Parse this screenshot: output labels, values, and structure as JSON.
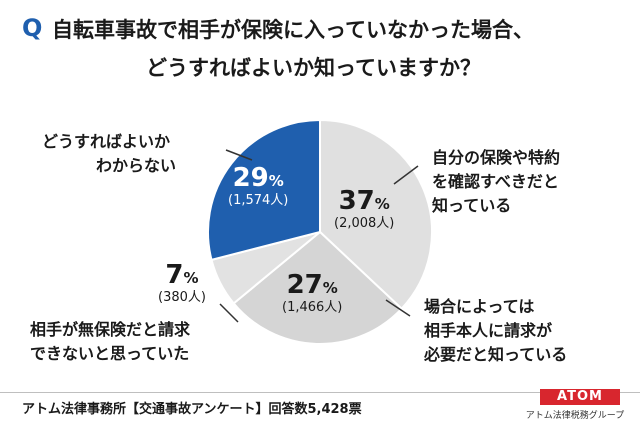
{
  "header": {
    "q_mark": "Q",
    "line1": "自転車事故で相手が保険に入っていなかった場合、",
    "line2": "どうすればよいか知っていますか？"
  },
  "chart_data": {
    "type": "pie",
    "title": "自転車事故で相手が保険に入っていなかった場合、どうすればよいか知っていますか？",
    "total_label": "回答数5,428票",
    "slices": [
      {
        "label_lines": [
          "自分の保険や特約",
          "を確認すべきだと",
          "知っている"
        ],
        "percent": 37,
        "percent_text": "37",
        "count_text": "(2,008人)",
        "count": 2008,
        "color": "#e0e0e0"
      },
      {
        "label_lines": [
          "場合によっては",
          "相手本人に請求が",
          "必要だと知っている"
        ],
        "percent": 27,
        "percent_text": "27",
        "count_text": "(1,466人)",
        "count": 1466,
        "color": "#d5d5d5"
      },
      {
        "label_lines": [
          "相手が無保険だと請求",
          "できないと思っていた"
        ],
        "percent": 7,
        "percent_text": "7",
        "count_text": "(380人)",
        "count": 380,
        "color": "#e2e2e2"
      },
      {
        "label_lines": [
          "どうすればよいか",
          "わからない"
        ],
        "percent": 29,
        "percent_text": "29",
        "count_text": "(1,574人)",
        "count": 1574,
        "color": "#1f5fae"
      }
    ],
    "percent_suffix": "%"
  },
  "footer": {
    "source": "アトム法律事務所【交通事故アンケート】回答数5,428票",
    "brand": "ATOM",
    "brand_sub": "アトム法律税務グループ"
  },
  "colors": {
    "accent": "#1f5fae",
    "brand": "#d8262e",
    "slice_border": "#ffffff",
    "leader": "#333333"
  }
}
